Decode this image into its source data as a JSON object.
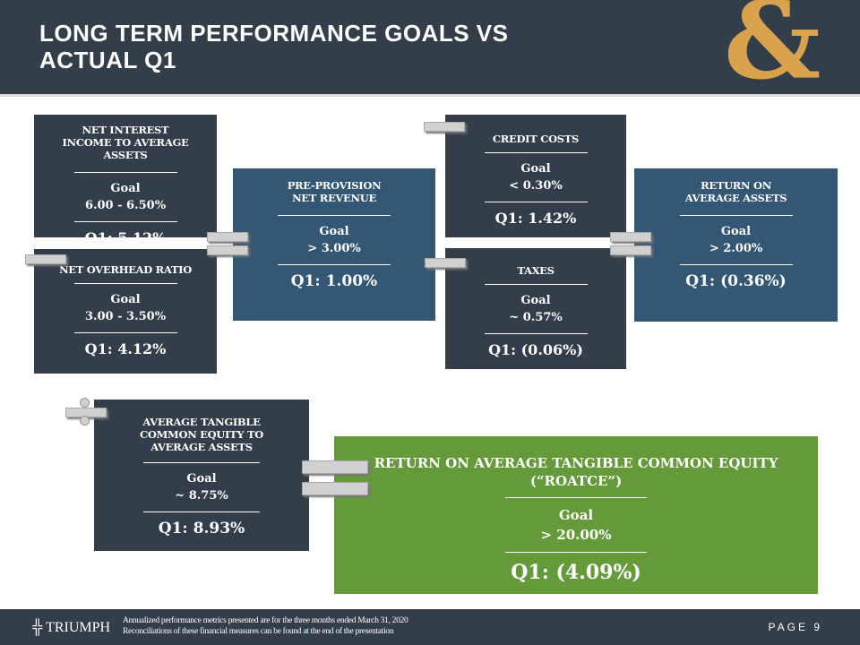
{
  "header": {
    "title_line1": "LONG TERM PERFORMANCE GOALS VS",
    "title_line2": "ACTUAL Q1",
    "logo": "&"
  },
  "metrics": [
    {
      "label": "NET INTEREST INCOME TO AVERAGE ASSETS",
      "goal_label": "Goal",
      "goal": "6.00 - 6.50%",
      "actual": "Q1: 5.12%"
    },
    {
      "label": "NET OVERHEAD RATIO",
      "goal_label": "Goal",
      "goal": "3.00 - 3.50%",
      "actual": "Q1: 4.12%"
    },
    {
      "label": "PRE-PROVISION NET REVENUE",
      "goal_label": "Goal",
      "goal": "> 3.00%",
      "actual": "Q1: 1.00%"
    },
    {
      "label": "CREDIT COSTS",
      "goal_label": "Goal",
      "goal": "< 0.30%",
      "actual": "Q1: 1.42%"
    },
    {
      "label": "TAXES",
      "goal_label": "Goal",
      "goal": "~ 0.57%",
      "actual": "Q1: (0.06%)"
    },
    {
      "label": "RETURN ON AVERAGE ASSETS",
      "goal_label": "Goal",
      "goal": "> 2.00%",
      "actual": "Q1: (0.36%)"
    },
    {
      "label": "AVERAGE TANGIBLE COMMON EQUITY TO AVERAGE ASSETS",
      "goal_label": "Goal",
      "goal": "~ 8.75%",
      "actual": "Q1: 8.93%"
    },
    {
      "label": "RETURN ON AVERAGE TANGIBLE COMMON EQUITY (“ROATCE”)",
      "goal_label": "Goal",
      "goal": "> 20.00%",
      "actual": "Q1: (4.09%)"
    }
  ],
  "footer": {
    "brand": "TRIUMPH",
    "note_line1": "Annualized performance metrics presented are for the three months ended March 31, 2020",
    "note_line2": "Reconciliations of these financial measures can be found at the end of the presentation",
    "page": "PAGE 9"
  },
  "colors": {
    "dark": "#323e49",
    "blue": "#345776",
    "green": "#659a3a",
    "gold": "#d9a24c"
  }
}
